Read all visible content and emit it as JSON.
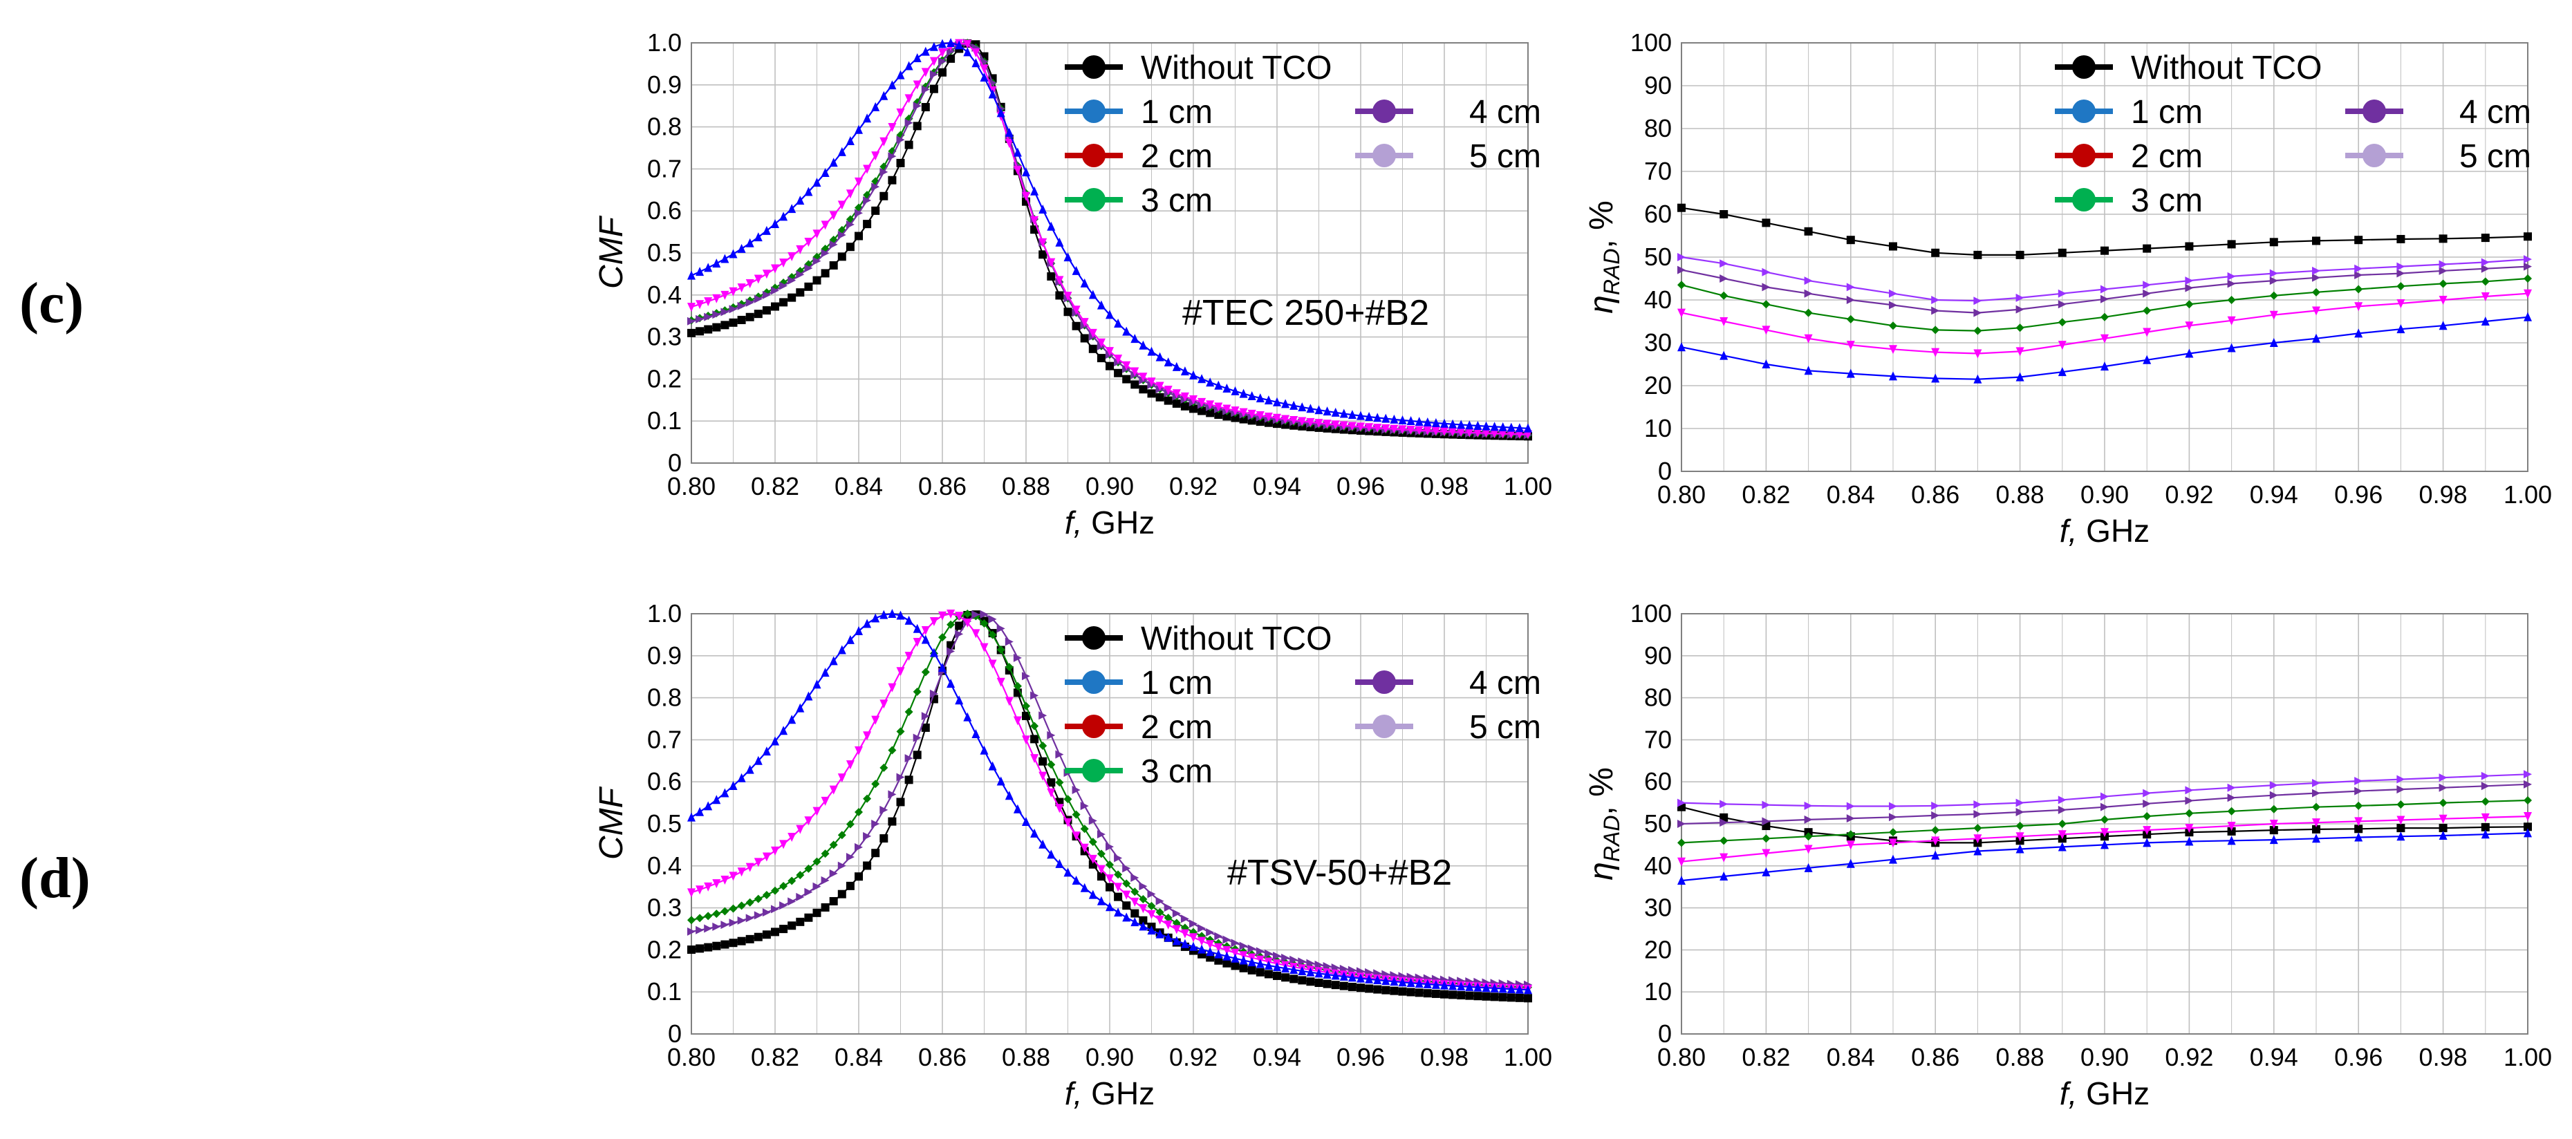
{
  "panel_labels": [
    "(c)",
    "(d)"
  ],
  "colors": {
    "without_tco": "#000000",
    "cm1": "#0000ff",
    "cm2": "#ff00ff",
    "cm3": "#008000",
    "cm4": "#7030a0",
    "cm5": "#9933ff",
    "legend_without": "#000000",
    "legend_1cm": "#1f77c4",
    "legend_2cm": "#c00000",
    "legend_3cm": "#00b050",
    "legend_4cm": "#7030a0",
    "legend_5cm": "#b4a0d4",
    "grid": "#bfbfbf"
  },
  "legend": {
    "entries": [
      "Without TCO",
      "1 cm",
      "2 cm",
      "3 cm",
      "4 cm",
      "5 cm"
    ]
  },
  "chart_data": [
    {
      "id": "c-cmf",
      "type": "line",
      "title": "",
      "annotation": "#TEC 250+#B2",
      "xlabel_italic": "f,",
      "xlabel_rest": " GHz",
      "ylabel": "CMF",
      "xlim": [
        0.8,
        1.0
      ],
      "ylim": [
        0,
        1.0
      ],
      "x_ticks": [
        "0.80",
        "0.82",
        "0.84",
        "0.86",
        "0.88",
        "0.90",
        "0.92",
        "0.94",
        "0.96",
        "0.98",
        "1.00"
      ],
      "y_ticks": [
        "0",
        "0.1",
        "0.2",
        "0.3",
        "0.4",
        "0.5",
        "0.6",
        "0.7",
        "0.8",
        "0.9",
        "1.0"
      ],
      "peak_curves": true,
      "series": [
        {
          "name": "Without TCO",
          "peak": 0.867,
          "base": 0.235,
          "tail": 0.05,
          "wl": 0.022,
          "wr": 0.016
        },
        {
          "name": "1 cm",
          "peak": 0.862,
          "base": 0.27,
          "tail": 0.05,
          "wl": 0.035,
          "wr": 0.026
        },
        {
          "name": "2 cm",
          "peak": 0.865,
          "base": 0.255,
          "tail": 0.05,
          "wl": 0.028,
          "wr": 0.019
        },
        {
          "name": "3 cm",
          "peak": 0.866,
          "base": 0.245,
          "tail": 0.05,
          "wl": 0.025,
          "wr": 0.018
        },
        {
          "name": "4 cm",
          "peak": 0.866,
          "base": 0.25,
          "tail": 0.05,
          "wl": 0.024,
          "wr": 0.018
        }
      ]
    },
    {
      "id": "c-nrad",
      "type": "line",
      "title": "",
      "annotation": "",
      "xlabel_italic": "f,",
      "xlabel_rest": " GHz",
      "ylabel": "η",
      "ylabel_sub": "RAD",
      "ylabel_tail": ", %",
      "xlim": [
        0.8,
        1.0
      ],
      "ylim": [
        0,
        100
      ],
      "x_ticks": [
        "0.80",
        "0.82",
        "0.84",
        "0.86",
        "0.88",
        "0.90",
        "0.92",
        "0.94",
        "0.96",
        "0.98",
        "1.00"
      ],
      "y_ticks": [
        "0",
        "10",
        "20",
        "30",
        "40",
        "50",
        "60",
        "70",
        "80",
        "90",
        "100"
      ],
      "x": [
        0.8,
        0.81,
        0.82,
        0.83,
        0.84,
        0.85,
        0.86,
        0.87,
        0.88,
        0.89,
        0.9,
        0.91,
        0.92,
        0.93,
        0.94,
        0.95,
        0.96,
        0.97,
        0.98,
        0.99,
        1.0
      ],
      "series": [
        {
          "name": "Without TCO",
          "values": [
            61.5,
            60,
            58,
            56,
            54,
            52.5,
            51,
            50.5,
            50.5,
            51,
            51.5,
            52,
            52.5,
            53,
            53.5,
            53.8,
            54,
            54.2,
            54.3,
            54.5,
            54.8
          ]
        },
        {
          "name": "1 cm",
          "values": [
            29,
            27,
            25,
            23.5,
            22.8,
            22.2,
            21.7,
            21.5,
            22,
            23.2,
            24.5,
            26,
            27.5,
            28.8,
            30,
            31,
            32.2,
            33.2,
            34,
            35,
            36
          ]
        },
        {
          "name": "2 cm",
          "values": [
            37,
            35,
            33,
            31,
            29.5,
            28.5,
            27.8,
            27.5,
            28,
            29.5,
            31,
            32.5,
            34,
            35.2,
            36.5,
            37.5,
            38.5,
            39.2,
            40,
            40.8,
            41.5
          ]
        },
        {
          "name": "3 cm",
          "values": [
            43.5,
            41,
            39,
            37,
            35.5,
            34,
            33,
            32.8,
            33.5,
            34.8,
            36,
            37.5,
            39,
            40,
            41,
            41.8,
            42.5,
            43.2,
            43.8,
            44.3,
            45
          ]
        },
        {
          "name": "4 cm",
          "values": [
            47,
            45,
            43,
            41.5,
            40,
            38.8,
            37.5,
            37,
            37.8,
            39,
            40.2,
            41.5,
            42.8,
            43.8,
            44.5,
            45.2,
            45.8,
            46.2,
            46.8,
            47.3,
            47.8
          ]
        },
        {
          "name": "5 cm",
          "values": [
            50,
            48.5,
            46.5,
            44.5,
            43,
            41.5,
            40,
            39.8,
            40.5,
            41.5,
            42.5,
            43.5,
            44.5,
            45.5,
            46.2,
            46.8,
            47.3,
            47.8,
            48.3,
            48.8,
            49.5
          ]
        }
      ]
    },
    {
      "id": "d-cmf",
      "type": "line",
      "title": "",
      "annotation": "#TSV-50+#B2",
      "xlabel_italic": "f,",
      "xlabel_rest": " GHz",
      "ylabel": "CMF",
      "xlim": [
        0.8,
        1.0
      ],
      "ylim": [
        0,
        1.0
      ],
      "x_ticks": [
        "0.80",
        "0.82",
        "0.84",
        "0.86",
        "0.88",
        "0.90",
        "0.92",
        "0.94",
        "0.96",
        "0.98",
        "1.00"
      ],
      "y_ticks": [
        "0",
        "0.1",
        "0.2",
        "0.3",
        "0.4",
        "0.5",
        "0.6",
        "0.7",
        "0.8",
        "0.9",
        "1.0"
      ],
      "peak_curves": true,
      "series": [
        {
          "name": "Without TCO",
          "peak": 0.867,
          "base": 0.155,
          "tail": 0.06,
          "wl": 0.016,
          "wr": 0.022
        },
        {
          "name": "1 cm",
          "peak": 0.848,
          "base": 0.3,
          "tail": 0.07,
          "wl": 0.032,
          "wr": 0.03
        },
        {
          "name": "2 cm",
          "peak": 0.862,
          "base": 0.22,
          "tail": 0.075,
          "wl": 0.026,
          "wr": 0.026
        },
        {
          "name": "3 cm",
          "peak": 0.866,
          "base": 0.19,
          "tail": 0.08,
          "wl": 0.022,
          "wr": 0.025
        },
        {
          "name": "4 cm",
          "peak": 0.869,
          "base": 0.18,
          "tail": 0.085,
          "wl": 0.02,
          "wr": 0.025
        }
      ]
    },
    {
      "id": "d-nrad",
      "type": "line",
      "title": "",
      "annotation": "",
      "xlabel_italic": "f,",
      "xlabel_rest": " GHz",
      "ylabel": "η",
      "ylabel_sub": "RAD",
      "ylabel_tail": ", %",
      "xlim": [
        0.8,
        1.0
      ],
      "ylim": [
        0,
        100
      ],
      "x_ticks": [
        "0.80",
        "0.82",
        "0.84",
        "0.86",
        "0.88",
        "0.90",
        "0.92",
        "0.94",
        "0.96",
        "0.98",
        "1.00"
      ],
      "y_ticks": [
        "0",
        "10",
        "20",
        "30",
        "40",
        "50",
        "60",
        "70",
        "80",
        "90",
        "100"
      ],
      "x": [
        0.8,
        0.81,
        0.82,
        0.83,
        0.84,
        0.85,
        0.86,
        0.87,
        0.88,
        0.89,
        0.9,
        0.91,
        0.92,
        0.93,
        0.94,
        0.95,
        0.96,
        0.97,
        0.98,
        0.99,
        1.0
      ],
      "series": [
        {
          "name": "Without TCO",
          "values": [
            54,
            51.5,
            49.5,
            48,
            47,
            46,
            45.5,
            45.5,
            46,
            46.5,
            47,
            47.5,
            48,
            48.2,
            48.5,
            48.7,
            48.8,
            49,
            49,
            49.2,
            49.3
          ]
        },
        {
          "name": "1 cm",
          "values": [
            36.5,
            37.5,
            38.5,
            39.5,
            40.5,
            41.5,
            42.5,
            43.5,
            44,
            44.5,
            45,
            45.5,
            45.8,
            46,
            46.2,
            46.5,
            46.8,
            47,
            47.2,
            47.5,
            47.8
          ]
        },
        {
          "name": "2 cm",
          "values": [
            41,
            42,
            43,
            44,
            45,
            45.5,
            46,
            46.5,
            47,
            47.5,
            48,
            48.5,
            49,
            49.5,
            50,
            50.3,
            50.6,
            50.9,
            51.2,
            51.5,
            51.8
          ]
        },
        {
          "name": "3 cm",
          "values": [
            45.5,
            46,
            46.5,
            47,
            47.5,
            48,
            48.5,
            49,
            49.5,
            50,
            51,
            51.8,
            52.5,
            53,
            53.5,
            54,
            54.3,
            54.6,
            55,
            55.3,
            55.6
          ]
        },
        {
          "name": "4 cm",
          "values": [
            50,
            50.3,
            50.6,
            51,
            51.3,
            51.6,
            52,
            52.3,
            52.8,
            53.3,
            54,
            54.8,
            55.5,
            56.2,
            56.8,
            57.3,
            57.8,
            58.2,
            58.6,
            59,
            59.4
          ]
        },
        {
          "name": "5 cm",
          "values": [
            55,
            54.7,
            54.5,
            54.3,
            54.2,
            54.2,
            54.3,
            54.6,
            55,
            55.7,
            56.5,
            57.3,
            58,
            58.6,
            59.2,
            59.7,
            60.2,
            60.6,
            61,
            61.4,
            61.8
          ]
        }
      ]
    }
  ]
}
